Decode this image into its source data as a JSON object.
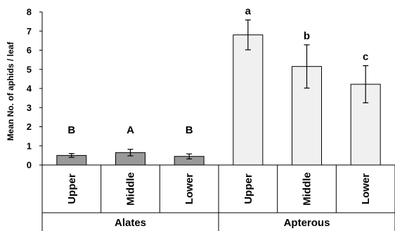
{
  "chart_data": {
    "type": "bar",
    "ylabel": "Mean No. of aphids / leaf",
    "ylim": [
      0,
      8
    ],
    "yticks": [
      "0",
      "1",
      "2",
      "3",
      "4",
      "5",
      "6",
      "7",
      "8"
    ],
    "groups": [
      {
        "name": "Alates",
        "color": "#999999",
        "bars": [
          {
            "category": "Upper",
            "value": 0.5,
            "error": 0.1,
            "label": "B"
          },
          {
            "category": "Middle",
            "value": 0.65,
            "error": 0.17,
            "label": "A"
          },
          {
            "category": "Lower",
            "value": 0.45,
            "error": 0.13,
            "label": "B"
          }
        ]
      },
      {
        "name": "Apterous",
        "color": "#f0f0f0",
        "bars": [
          {
            "category": "Upper",
            "value": 6.8,
            "error": 0.78,
            "label": "a"
          },
          {
            "category": "Middle",
            "value": 5.15,
            "error": 1.13,
            "label": "b"
          },
          {
            "category": "Lower",
            "value": 4.22,
            "error": 0.97,
            "label": "c"
          }
        ]
      }
    ],
    "grid": false
  }
}
